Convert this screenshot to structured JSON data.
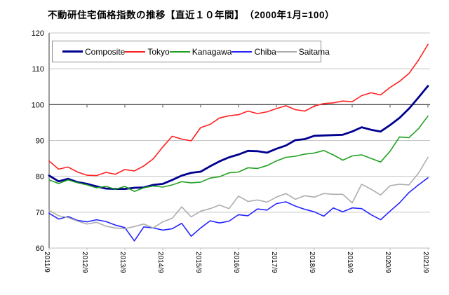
{
  "title": "不動研住宅価格指数の推移【直近１０年間】　（2000年1月=100）",
  "legend": {
    "items": [
      {
        "label": "Composite"
      },
      {
        "label": "Tokyo"
      },
      {
        "label": "Kanagawa"
      },
      {
        "label": "Chiba"
      },
      {
        "label": "Saitama"
      }
    ]
  },
  "colors": {
    "composite": "#000090",
    "tokyo": "#FF2020",
    "kanagawa": "#22A022",
    "chiba": "#2424FF",
    "saitama": "#ADADAD",
    "gridline": "#C8C8C8",
    "baseline_100": "#4D4D4D",
    "axis_left": "#595959",
    "axis_bottom": "#BFBFBF",
    "text": "#000000"
  },
  "chart_data": {
    "type": "line",
    "title": "不動研住宅価格指数の推移【直近１０年間】　（2000年1月=100）",
    "xlabel": "",
    "ylabel": "",
    "ylim": [
      60,
      120
    ],
    "yticks": [
      60,
      70,
      80,
      90,
      100,
      110,
      120
    ],
    "baseline_value": 100,
    "grid": true,
    "legend_position": "top-inside",
    "x": [
      "2011/9",
      "2011/12",
      "2012/3",
      "2012/6",
      "2012/9",
      "2012/12",
      "2013/3",
      "2013/6",
      "2013/9",
      "2013/12",
      "2014/3",
      "2014/6",
      "2014/9",
      "2014/12",
      "2015/3",
      "2015/6",
      "2015/9",
      "2015/12",
      "2016/3",
      "2016/6",
      "2016/9",
      "2016/12",
      "2017/3",
      "2017/6",
      "2017/9",
      "2017/12",
      "2018/3",
      "2018/6",
      "2018/9",
      "2018/12",
      "2019/3",
      "2019/6",
      "2019/9",
      "2019/12",
      "2020/3",
      "2020/6",
      "2020/9",
      "2020/12",
      "2021/3",
      "2021/6",
      "2021/9"
    ],
    "xtick_labels": [
      "2011/9",
      "2012/9",
      "2013/9",
      "2014/9",
      "2015/9",
      "2016/9",
      "2017/9",
      "2018/9",
      "2019/9",
      "2020/9",
      "2021/9"
    ],
    "xtick_every": 4,
    "series": [
      {
        "name": "Composite",
        "color_key": "composite",
        "width": 2.8,
        "values": [
          80.2,
          78.6,
          79.3,
          78.4,
          77.9,
          77.2,
          76.6,
          76.5,
          76.5,
          76.8,
          76.9,
          77.6,
          77.9,
          79.0,
          80.2,
          81.0,
          81.3,
          82.8,
          84.2,
          85.3,
          86.1,
          87.1,
          87.0,
          86.6,
          87.7,
          88.6,
          90.1,
          90.4,
          91.3,
          91.4,
          91.5,
          91.6,
          92.5,
          93.7,
          93.0,
          92.5,
          94.3,
          96.3,
          98.9,
          102.0,
          105.2
        ]
      },
      {
        "name": "Tokyo",
        "color_key": "tokyo",
        "width": 1.6,
        "values": [
          84.3,
          82.0,
          82.6,
          81.2,
          80.3,
          80.2,
          81.1,
          80.6,
          81.9,
          81.5,
          82.9,
          84.9,
          88.2,
          91.2,
          90.4,
          89.9,
          93.6,
          94.5,
          96.3,
          96.9,
          97.2,
          98.2,
          97.5,
          98.0,
          98.9,
          99.7,
          98.6,
          98.2,
          99.6,
          100.3,
          100.5,
          101.0,
          100.8,
          102.5,
          103.3,
          102.7,
          104.8,
          106.5,
          108.7,
          112.4,
          116.8
        ]
      },
      {
        "name": "Kanagawa",
        "color_key": "kanagawa",
        "width": 1.6,
        "values": [
          79.0,
          78.0,
          79.0,
          78.2,
          77.6,
          76.8,
          77.2,
          76.4,
          77.2,
          75.8,
          76.8,
          77.3,
          77.0,
          77.6,
          78.5,
          78.2,
          78.4,
          79.5,
          79.9,
          81.0,
          81.2,
          82.4,
          82.2,
          83.0,
          84.3,
          85.3,
          85.6,
          86.2,
          86.5,
          87.2,
          86.0,
          84.5,
          85.7,
          86.0,
          85.0,
          84.0,
          87.0,
          91.0,
          90.8,
          93.3,
          96.8
        ]
      },
      {
        "name": "Chiba",
        "color_key": "chiba",
        "width": 1.6,
        "values": [
          69.7,
          68.1,
          68.8,
          67.7,
          67.3,
          67.9,
          67.4,
          66.4,
          65.7,
          62.0,
          65.9,
          65.6,
          65.0,
          65.4,
          66.9,
          63.3,
          65.6,
          67.6,
          67.0,
          67.5,
          69.3,
          69.0,
          70.9,
          70.6,
          72.4,
          72.9,
          71.7,
          70.8,
          70.1,
          68.9,
          71.2,
          70.1,
          71.2,
          71.0,
          69.3,
          67.9,
          70.3,
          72.6,
          75.5,
          77.6,
          79.6
        ]
      },
      {
        "name": "Saitama",
        "color_key": "saitama",
        "width": 1.6,
        "values": [
          70.5,
          69.0,
          68.5,
          67.5,
          66.7,
          67.2,
          66.1,
          65.6,
          65.4,
          66.0,
          66.7,
          65.6,
          67.3,
          68.3,
          71.5,
          68.7,
          70.3,
          71.0,
          72.0,
          71.0,
          74.5,
          73.0,
          73.4,
          72.8,
          74.2,
          75.2,
          73.6,
          74.6,
          74.2,
          75.2,
          75.0,
          75.0,
          72.6,
          77.8,
          76.4,
          74.8,
          77.4,
          77.8,
          77.6,
          80.9,
          85.3
        ]
      }
    ]
  }
}
